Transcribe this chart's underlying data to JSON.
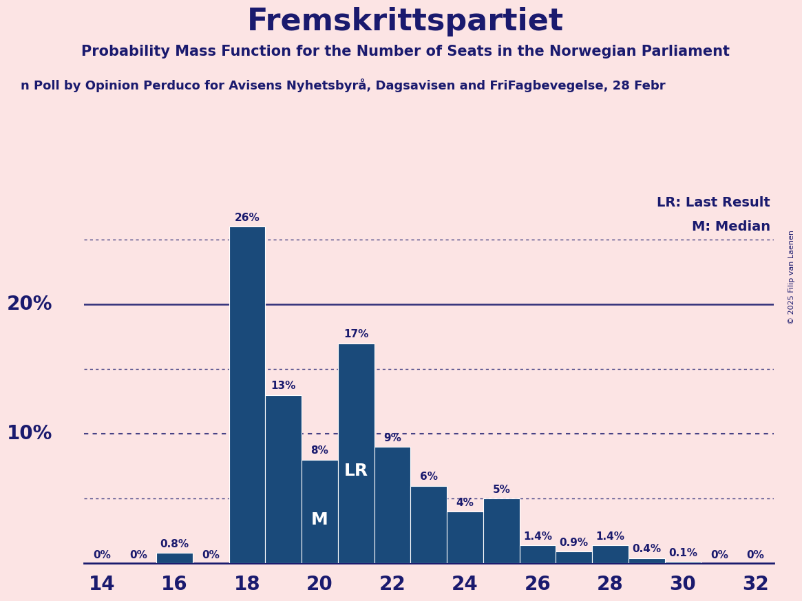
{
  "title": "Fremskrittspartiet",
  "subtitle": "Probability Mass Function for the Number of Seats in the Norwegian Parliament",
  "source_line": "n Poll by Opinion Perduco for Avisens Nyhetsbyrå, Dagsavisen and FriFagbevegelse, 28 Febr",
  "copyright": "© 2025 Filip van Laenen",
  "legend_lr": "LR: Last Result",
  "legend_m": "M: Median",
  "seats": [
    14,
    15,
    16,
    17,
    18,
    19,
    20,
    21,
    22,
    23,
    24,
    25,
    26,
    27,
    28,
    29,
    30,
    31,
    32
  ],
  "probabilities": [
    0.0,
    0.0,
    0.8,
    0.0,
    26.0,
    13.0,
    8.0,
    17.0,
    9.0,
    6.0,
    4.0,
    5.0,
    1.4,
    0.9,
    1.4,
    0.4,
    0.1,
    0.0,
    0.0
  ],
  "bar_color": "#1a4a7a",
  "background_color": "#fce4e4",
  "text_color": "#1a1a6e",
  "lr_seat": 21,
  "median_seat": 20,
  "xlim_min": 13.5,
  "xlim_max": 32.5,
  "ylim_max": 28.5,
  "dotted_line_levels": [
    5.0,
    15.0,
    25.0
  ],
  "solid_line_levels": [
    20.0
  ],
  "dotted_line_levels2": [
    10.0
  ],
  "xtick_positions": [
    14,
    16,
    18,
    20,
    22,
    24,
    26,
    28,
    30,
    32
  ],
  "ytick_label_positions": [
    10,
    20
  ],
  "ytick_labels_main": [
    "10%",
    "20%"
  ],
  "title_fontsize": 32,
  "subtitle_fontsize": 15,
  "source_fontsize": 13,
  "label_fontsize": 11,
  "ytick_fontsize": 20,
  "xtick_fontsize": 20
}
